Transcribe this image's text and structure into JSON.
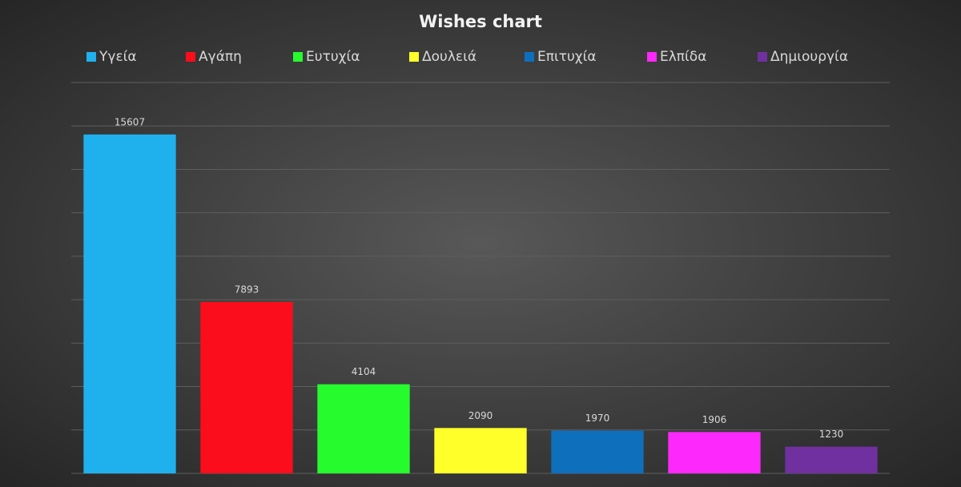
{
  "chart_data": {
    "type": "bar",
    "title": "Wishes chart",
    "series": [
      {
        "name": "Υγεία",
        "color": "#1fb0ee",
        "values": [
          15607
        ]
      },
      {
        "name": "Αγάπη",
        "color": "#fb0d1b",
        "values": [
          7893
        ]
      },
      {
        "name": "Ευτυχία",
        "color": "#26fb2e",
        "values": [
          4104
        ]
      },
      {
        "name": "Δουλειά",
        "color": "#ffff2a",
        "values": [
          2090
        ]
      },
      {
        "name": "Επιτυχία",
        "color": "#0e6fbd",
        "values": [
          1970
        ]
      },
      {
        "name": "Ελπίδα",
        "color": "#fc28fc",
        "values": [
          1906
        ]
      },
      {
        "name": "Δημιουργία",
        "color": "#7030a0",
        "values": [
          1230
        ]
      }
    ],
    "ylim": [
      0,
      18000
    ],
    "yticks": [
      0,
      2000,
      4000,
      6000,
      8000,
      10000,
      12000,
      14000,
      16000,
      18000
    ],
    "grid": true,
    "legend": "top"
  }
}
